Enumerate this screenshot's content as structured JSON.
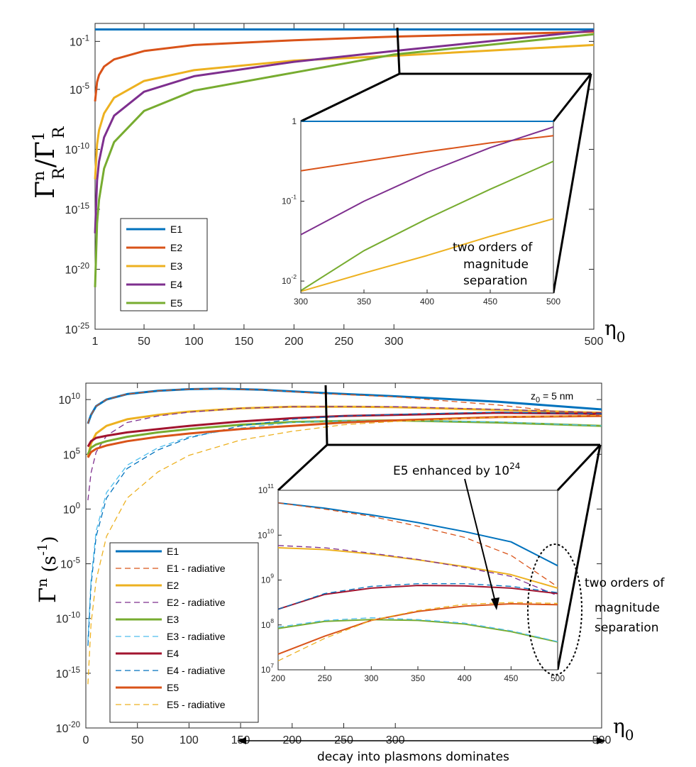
{
  "chart_data": [
    {
      "type": "line",
      "title": "",
      "ylabel_main": "Γ",
      "ylabel_sup": "n",
      "ylabel_sub": "R",
      "ylabel_slash": "/Γ",
      "ylabel_sup2": "1",
      "ylabel_sub2": "R",
      "xlabel": "η",
      "xlabel_sub": "0",
      "yscale": "log",
      "xlim": [
        1,
        500
      ],
      "ylim_exp": [
        -25,
        0.5
      ],
      "xticks": [
        1,
        50,
        100,
        150,
        200,
        250,
        300,
        500
      ],
      "xtick_labels": [
        "1",
        "50",
        "100",
        "150",
        "200",
        "250",
        "300",
        "500"
      ],
      "ytick_exps": [
        -1,
        -5,
        -10,
        -15,
        -20,
        -25
      ],
      "ytick_base": "10",
      "ytick_sups": [
        "-1",
        "-5",
        "-10",
        "-15",
        "-20",
        "-25"
      ],
      "legend": [
        "E1",
        "E2",
        "E3",
        "E4",
        "E5"
      ],
      "series": [
        {
          "name": "E1",
          "color": "#0072BD",
          "x": [
            1,
            500
          ],
          "log10y": [
            0,
            0
          ]
        },
        {
          "name": "E2",
          "color": "#D95319",
          "x": [
            1,
            3,
            5,
            10,
            20,
            50,
            100,
            200,
            300,
            500
          ],
          "log10y": [
            -6,
            -4.4,
            -3.8,
            -3.1,
            -2.5,
            -1.8,
            -1.3,
            -0.9,
            -0.6,
            -0.2
          ]
        },
        {
          "name": "E3",
          "color": "#EDB120",
          "x": [
            1,
            3,
            5,
            10,
            20,
            50,
            100,
            200,
            300,
            500
          ],
          "log10y": [
            -12.5,
            -9.6,
            -8.4,
            -7.0,
            -5.7,
            -4.3,
            -3.4,
            -2.6,
            -2.2,
            -1.3
          ]
        },
        {
          "name": "E4",
          "color": "#7E2F8E",
          "x": [
            1,
            3,
            5,
            10,
            20,
            50,
            100,
            200,
            300,
            500
          ],
          "log10y": [
            -17,
            -12.6,
            -11.0,
            -9.0,
            -7.2,
            -5.2,
            -3.9,
            -2.7,
            -1.8,
            -0.1
          ]
        },
        {
          "name": "E5",
          "color": "#77AC30",
          "x": [
            1,
            3,
            5,
            10,
            20,
            50,
            100,
            200,
            300,
            500
          ],
          "log10y": [
            -21.5,
            -16.2,
            -14.2,
            -11.6,
            -9.4,
            -6.8,
            -5.1,
            -3.6,
            -2.1,
            -0.4
          ]
        }
      ],
      "inset": {
        "xlim": [
          300,
          500
        ],
        "xticks": [
          300,
          350,
          400,
          450,
          500
        ],
        "xtick_labels": [
          "300",
          "350",
          "400",
          "450",
          "500"
        ],
        "ylim_exp": [
          -2.15,
          0
        ],
        "yticks": [
          {
            "exp": 0,
            "label": "1"
          },
          {
            "exp": -1,
            "label": "10"
          },
          {
            "exp": -2,
            "label": "10"
          }
        ],
        "ytick_sups": [
          "",
          "-1",
          "-2"
        ],
        "series": [
          {
            "name": "E1",
            "color": "#0072BD",
            "x": [
              300,
              500
            ],
            "log10y": [
              0,
              0
            ]
          },
          {
            "name": "E2",
            "color": "#D95319",
            "x": [
              300,
              350,
              400,
              450,
              500
            ],
            "log10y": [
              -0.62,
              -0.5,
              -0.38,
              -0.27,
              -0.18
            ]
          },
          {
            "name": "E3",
            "color": "#EDB120",
            "x": [
              300,
              350,
              400,
              450,
              500
            ],
            "log10y": [
              -2.13,
              -1.9,
              -1.68,
              -1.44,
              -1.22
            ]
          },
          {
            "name": "E4",
            "color": "#7E2F8E",
            "x": [
              300,
              350,
              400,
              450,
              500
            ],
            "log10y": [
              -1.42,
              -1.0,
              -0.64,
              -0.33,
              -0.07
            ]
          },
          {
            "name": "E5",
            "color": "#77AC30",
            "x": [
              300,
              350,
              400,
              450,
              500
            ],
            "log10y": [
              -2.12,
              -1.62,
              -1.22,
              -0.85,
              -0.5
            ]
          }
        ]
      },
      "annotations": [
        "two orders of",
        "magnitude",
        "separation"
      ]
    },
    {
      "type": "line",
      "ylabel": "Γ",
      "ylabel_sup": "n",
      "ylabel_unit": " (s",
      "ylabel_unit_sup": "-1",
      "ylabel_unit_close": ")",
      "xlabel": "η",
      "xlabel_sub": "0",
      "yscale": "log",
      "xlim": [
        0,
        500
      ],
      "ylim_exp": [
        -20,
        11.5
      ],
      "xticks": [
        0,
        50,
        100,
        150,
        200,
        250,
        300,
        500
      ],
      "xtick_labels": [
        "0",
        "50",
        "100",
        "150",
        "200",
        "250",
        "300",
        "500"
      ],
      "ytick_exps": [
        10,
        5,
        0,
        -5,
        -10,
        -15,
        -20
      ],
      "ytick_base": "10",
      "ytick_sups": [
        "10",
        "5",
        "0",
        "-5",
        "-10",
        "-15",
        "-20"
      ],
      "z0_label": "z",
      "z0_sub": "0",
      "z0_value": " = 5 nm",
      "legend": [
        "E1",
        "E1 - radiative",
        "E2",
        "E2 - radiative",
        "E3",
        "E3 - radiative",
        "E4",
        "E4 - radiative",
        "E5",
        "E5 - radiative"
      ],
      "series": [
        {
          "name": "E1",
          "color": "#0072BD",
          "dash": false,
          "x": [
            2,
            5,
            10,
            20,
            40,
            70,
            100,
            130,
            170,
            230,
            300,
            400,
            500
          ],
          "log10y": [
            7.8,
            8.6,
            9.4,
            10.0,
            10.5,
            10.8,
            10.95,
            11.0,
            10.9,
            10.6,
            10.3,
            9.8,
            9.1
          ]
        },
        {
          "name": "E1 - radiative",
          "color": "#D95319",
          "dash": true,
          "x": [
            2,
            5,
            10,
            20,
            40,
            70,
            100,
            130,
            170,
            230,
            300,
            400,
            500
          ],
          "log10y": [
            7.8,
            8.6,
            9.4,
            10.0,
            10.5,
            10.8,
            10.95,
            10.98,
            10.9,
            10.55,
            10.25,
            9.5,
            8.5
          ]
        },
        {
          "name": "E2",
          "color": "#EDB120",
          "dash": false,
          "x": [
            2,
            5,
            10,
            20,
            40,
            70,
            100,
            150,
            200,
            250,
            300,
            400,
            500
          ],
          "log10y": [
            4.8,
            6.0,
            6.9,
            7.6,
            8.2,
            8.6,
            8.9,
            9.2,
            9.35,
            9.35,
            9.3,
            9.05,
            8.8
          ]
        },
        {
          "name": "E2 - radiative",
          "color": "#7E2F8E",
          "dash": true,
          "x": [
            2,
            5,
            10,
            20,
            40,
            70,
            100,
            150,
            200,
            250,
            300,
            400,
            500
          ],
          "log10y": [
            0.8,
            3.3,
            5.2,
            6.7,
            7.9,
            8.5,
            8.85,
            9.2,
            9.35,
            9.37,
            9.35,
            9.1,
            8.8
          ]
        },
        {
          "name": "E3",
          "color": "#77AC30",
          "dash": false,
          "x": [
            2,
            5,
            10,
            20,
            40,
            70,
            100,
            150,
            200,
            250,
            300,
            400,
            500
          ],
          "log10y": [
            5.0,
            5.6,
            5.9,
            6.2,
            6.6,
            7.0,
            7.3,
            7.7,
            7.95,
            8.05,
            8.1,
            7.9,
            7.6
          ]
        },
        {
          "name": "E3 - radiative",
          "color": "#4DBEEE",
          "dash": true,
          "x": [
            2,
            5,
            10,
            20,
            40,
            70,
            100,
            150,
            200,
            250,
            300,
            400,
            500
          ],
          "log10y": [
            -12,
            -6.5,
            -2.0,
            1.5,
            4.0,
            5.6,
            6.6,
            7.4,
            7.9,
            8.05,
            8.1,
            7.95,
            7.6
          ]
        },
        {
          "name": "E4",
          "color": "#A2142F",
          "dash": false,
          "x": [
            2,
            5,
            10,
            20,
            40,
            70,
            100,
            150,
            200,
            250,
            300,
            400,
            500
          ],
          "log10y": [
            5.7,
            6.2,
            6.5,
            6.7,
            7.0,
            7.3,
            7.6,
            8.0,
            8.3,
            8.5,
            8.6,
            8.8,
            8.7
          ]
        },
        {
          "name": "E4 - radiative",
          "color": "#0072BD",
          "dash": true,
          "x": [
            2,
            5,
            10,
            20,
            40,
            70,
            100,
            150,
            200,
            250,
            300,
            400,
            500
          ],
          "log10y": [
            -12.5,
            -7.0,
            -2.5,
            1.0,
            3.7,
            5.4,
            6.5,
            7.6,
            8.2,
            8.5,
            8.65,
            8.85,
            8.7
          ]
        },
        {
          "name": "E5",
          "color": "#D95319",
          "dash": false,
          "x": [
            2,
            5,
            10,
            20,
            40,
            70,
            100,
            150,
            200,
            250,
            300,
            400,
            500
          ],
          "log10y": [
            4.7,
            5.2,
            5.5,
            5.8,
            6.2,
            6.6,
            6.9,
            7.3,
            7.6,
            7.9,
            8.1,
            8.4,
            8.5
          ]
        },
        {
          "name": "E5 - radiative",
          "color": "#EDB120",
          "dash": true,
          "x": [
            2,
            5,
            10,
            20,
            40,
            70,
            100,
            150,
            200,
            250,
            300,
            400,
            500
          ],
          "log10y": [
            -16,
            -10.5,
            -6.5,
            -2.5,
            1.0,
            3.4,
            4.9,
            6.3,
            7.1,
            7.7,
            8.0,
            8.4,
            8.55
          ]
        }
      ],
      "inset": {
        "xlim": [
          200,
          500
        ],
        "xticks": [
          200,
          250,
          300,
          350,
          400,
          450,
          500
        ],
        "xtick_labels": [
          "200",
          "250",
          "300",
          "350",
          "400",
          "450",
          "500"
        ],
        "ylim_exp": [
          7,
          11
        ],
        "yticks": [
          {
            "exp": 11,
            "label": "10"
          },
          {
            "exp": 10,
            "label": "10"
          },
          {
            "exp": 9,
            "label": "10"
          },
          {
            "exp": 8,
            "label": "10"
          },
          {
            "exp": 7,
            "label": "10"
          }
        ],
        "ytick_sups": [
          "11",
          "10",
          "9",
          "8",
          "7"
        ],
        "series": [
          {
            "name": "E1",
            "color": "#0072BD",
            "dash": false,
            "x": [
              200,
              250,
              300,
              350,
              400,
              450,
              500
            ],
            "log10y": [
              10.72,
              10.6,
              10.45,
              10.28,
              10.08,
              9.85,
              9.32
            ]
          },
          {
            "name": "E1 - radiative",
            "color": "#D95319",
            "dash": true,
            "x": [
              200,
              250,
              300,
              350,
              400,
              450,
              500
            ],
            "log10y": [
              10.72,
              10.58,
              10.42,
              10.2,
              9.95,
              9.55,
              8.85
            ]
          },
          {
            "name": "E2",
            "color": "#EDB120",
            "dash": false,
            "x": [
              200,
              250,
              300,
              350,
              400,
              450,
              500
            ],
            "log10y": [
              9.72,
              9.68,
              9.58,
              9.45,
              9.3,
              9.12,
              8.82
            ]
          },
          {
            "name": "E2 - radiative",
            "color": "#7E2F8E",
            "dash": true,
            "x": [
              200,
              250,
              300,
              350,
              400,
              450,
              500
            ],
            "log10y": [
              9.77,
              9.72,
              9.6,
              9.46,
              9.28,
              9.08,
              8.65
            ]
          },
          {
            "name": "E3",
            "color": "#77AC30",
            "dash": false,
            "x": [
              200,
              250,
              300,
              350,
              400,
              450,
              500
            ],
            "log10y": [
              7.92,
              8.08,
              8.12,
              8.1,
              8.02,
              7.85,
              7.62
            ]
          },
          {
            "name": "E3 - radiative",
            "color": "#4DBEEE",
            "dash": true,
            "x": [
              200,
              250,
              300,
              350,
              400,
              450,
              500
            ],
            "log10y": [
              7.95,
              8.1,
              8.16,
              8.12,
              8.04,
              7.87,
              7.63
            ]
          },
          {
            "name": "E4",
            "color": "#A2142F",
            "dash": false,
            "x": [
              200,
              250,
              300,
              350,
              400,
              450,
              500
            ],
            "log10y": [
              8.35,
              8.68,
              8.82,
              8.88,
              8.87,
              8.82,
              8.7
            ]
          },
          {
            "name": "E4 - radiative",
            "color": "#0072BD",
            "dash": true,
            "x": [
              200,
              250,
              300,
              350,
              400,
              450,
              500
            ],
            "log10y": [
              8.35,
              8.7,
              8.86,
              8.92,
              8.92,
              8.86,
              8.72
            ]
          },
          {
            "name": "E5",
            "color": "#D95319",
            "dash": false,
            "x": [
              200,
              250,
              300,
              350,
              400,
              450,
              500
            ],
            "log10y": [
              7.35,
              7.75,
              8.1,
              8.3,
              8.42,
              8.47,
              8.45
            ]
          },
          {
            "name": "E5 - radiative",
            "color": "#EDB120",
            "dash": true,
            "x": [
              200,
              250,
              300,
              350,
              400,
              450,
              500
            ],
            "log10y": [
              7.2,
              7.7,
              8.1,
              8.32,
              8.46,
              8.5,
              8.48
            ]
          }
        ]
      },
      "annotations": {
        "enhanced": "E5 enhanced by 10",
        "enhanced_sup": "24",
        "separation": [
          "two orders of",
          "magnitude",
          "separation"
        ],
        "plasmons": "decay into plasmons dominates"
      }
    }
  ]
}
